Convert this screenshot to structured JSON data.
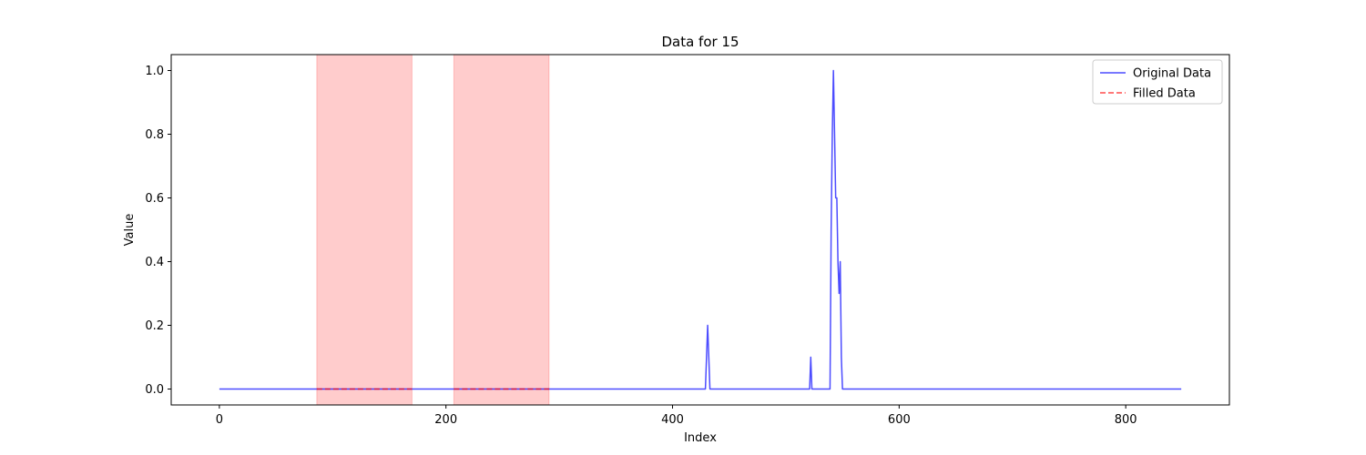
{
  "chart_data": {
    "type": "line",
    "title": "Data for 15",
    "xlabel": "Index",
    "ylabel": "Value",
    "xlim": [
      -42.5,
      891.5
    ],
    "ylim": [
      -0.05,
      1.05
    ],
    "xticks": [
      0,
      200,
      400,
      600,
      800
    ],
    "yticks": [
      0.0,
      0.2,
      0.4,
      0.6,
      0.8,
      1.0
    ],
    "xtick_labels": [
      "0",
      "200",
      "400",
      "600",
      "800"
    ],
    "ytick_labels": [
      "0.0",
      "0.2",
      "0.4",
      "0.6",
      "0.8",
      "1.0"
    ],
    "grid": false,
    "legend_position": "upper right",
    "shaded_regions": [
      {
        "x0": 86,
        "x1": 170,
        "color": "#ff0000",
        "alpha": 0.2
      },
      {
        "x0": 207,
        "x1": 291,
        "color": "#ff0000",
        "alpha": 0.2
      }
    ],
    "series": [
      {
        "name": "Original Data",
        "color": "#0000ff",
        "style": "solid",
        "points": [
          [
            0,
            0
          ],
          [
            429,
            0
          ],
          [
            430,
            0.1
          ],
          [
            431,
            0.2
          ],
          [
            432,
            0.1
          ],
          [
            433,
            0
          ],
          [
            521,
            0
          ],
          [
            522,
            0.1
          ],
          [
            523,
            0
          ],
          [
            539,
            0
          ],
          [
            540,
            0.5
          ],
          [
            541,
            0.8
          ],
          [
            542,
            1.0
          ],
          [
            543,
            0.8
          ],
          [
            544,
            0.6
          ],
          [
            545,
            0.6
          ],
          [
            546,
            0.4
          ],
          [
            547,
            0.3
          ],
          [
            548,
            0.4
          ],
          [
            549,
            0.1
          ],
          [
            550,
            0
          ],
          [
            849,
            0
          ]
        ]
      },
      {
        "name": "Filled Data",
        "color": "#ff0000",
        "style": "dashed",
        "segments": [
          [
            [
              86,
              0
            ],
            [
              170,
              0
            ]
          ],
          [
            [
              207,
              0
            ],
            [
              291,
              0
            ]
          ]
        ]
      }
    ]
  }
}
